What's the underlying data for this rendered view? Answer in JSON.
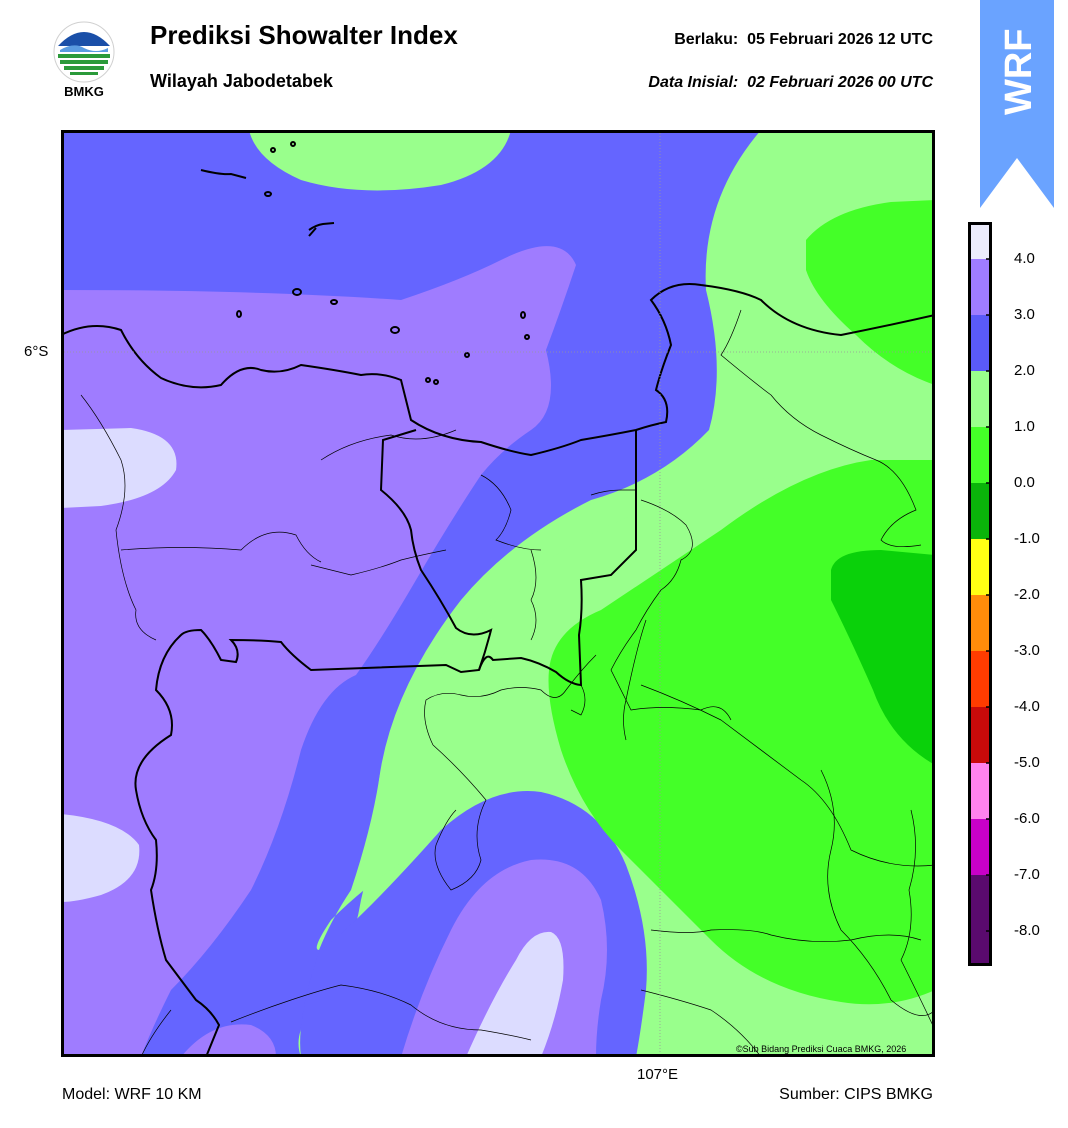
{
  "header": {
    "title": "Prediksi Showalter Index",
    "region": "Wilayah Jabodetabek",
    "valid_label": "Berlaku:",
    "valid_time": "05 Februari 2026 12 UTC",
    "init_label": "Data Inisial:",
    "init_time": "02 Februari 2026 00 UTC"
  },
  "logo": {
    "text": "BMKG",
    "icon": "bmkg-logo-icon"
  },
  "badge": {
    "text": "WRF",
    "color": "#6aa3ff",
    "icon": "up-arrow-banner-icon"
  },
  "map": {
    "lat_label": "6°S",
    "lon_label": "107°E",
    "copyright": "©Sub Bidang Prediksi Cuaca BMKG, 2026",
    "colors": {
      "c3to4": "#dcdcff",
      "c2to3": "#9f7cff",
      "c1to2": "#6565ff",
      "c0to1": "#99ff8c",
      "cm1to0": "#44ff28",
      "cm2tom1": "#0ad10a"
    }
  },
  "colorbar": {
    "ticks": [
      "4.0",
      "3.0",
      "2.0",
      "1.0",
      "0.0",
      "-1.0",
      "-2.0",
      "-3.0",
      "-4.0",
      "-5.0",
      "-6.0",
      "-7.0",
      "-8.0"
    ],
    "colors": [
      "#ececfc",
      "#9f7cff",
      "#5a5af8",
      "#99ff8c",
      "#44ff28",
      "#0ab40a",
      "#ffff14",
      "#ff8c0a",
      "#ff3c00",
      "#c80a0a",
      "#ff82ee",
      "#c800c8",
      "#5a0a6e"
    ]
  },
  "footer": {
    "model": "Model: WRF 10 KM",
    "source": "Sumber: CIPS BMKG"
  }
}
